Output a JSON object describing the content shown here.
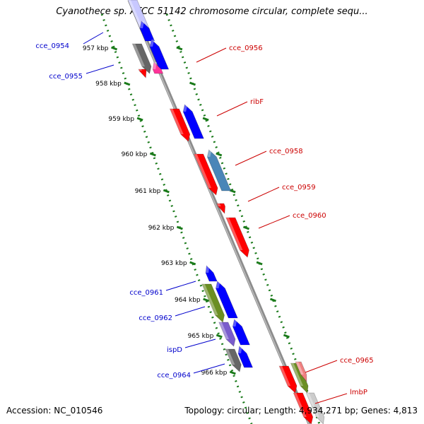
{
  "title": "Cyanothece sp. ATCC 51142 chromosome circular, complete sequ...",
  "footer": {
    "accession": "Accession: NC_010546",
    "summary": "Topology: circular; Length: 4,934,271 bp; Genes: 4,813"
  },
  "colors": {
    "backbone": "#8c8c8c",
    "ticks": "#1a7a1a",
    "forward_label": "#cc0000",
    "reverse_label": "#0000cc",
    "forward_gene": "#ff0000",
    "reverse_gene": "#0000ff",
    "gray_gene": "#666666",
    "pink_gene": "#ff3399",
    "olive_gene": "#6b8e23",
    "steel_gene": "#4a86b8",
    "purple_gene": "#7a5ccc"
  },
  "ticks": [
    {
      "label": "957 kbp"
    },
    {
      "label": "958 kbp"
    },
    {
      "label": "959 kbp"
    },
    {
      "label": "960 kbp"
    },
    {
      "label": "961 kbp"
    },
    {
      "label": "962 kbp"
    },
    {
      "label": "963 kbp"
    },
    {
      "label": "964 kbp"
    },
    {
      "label": "965 kbp"
    },
    {
      "label": "966 kbp"
    }
  ],
  "gene_labels": [
    {
      "text": "cce_0954",
      "strand": "reverse"
    },
    {
      "text": "cce_0955",
      "strand": "reverse"
    },
    {
      "text": "cce_0956",
      "strand": "forward"
    },
    {
      "text": "ribF",
      "strand": "forward"
    },
    {
      "text": "cce_0958",
      "strand": "forward"
    },
    {
      "text": "cce_0959",
      "strand": "forward"
    },
    {
      "text": "cce_0960",
      "strand": "forward"
    },
    {
      "text": "cce_0961",
      "strand": "reverse"
    },
    {
      "text": "cce_0962",
      "strand": "reverse"
    },
    {
      "text": "ispD",
      "strand": "reverse"
    },
    {
      "text": "cce_0964",
      "strand": "reverse"
    },
    {
      "text": "cce_0965",
      "strand": "forward"
    },
    {
      "text": "lmbP",
      "strand": "forward"
    }
  ]
}
